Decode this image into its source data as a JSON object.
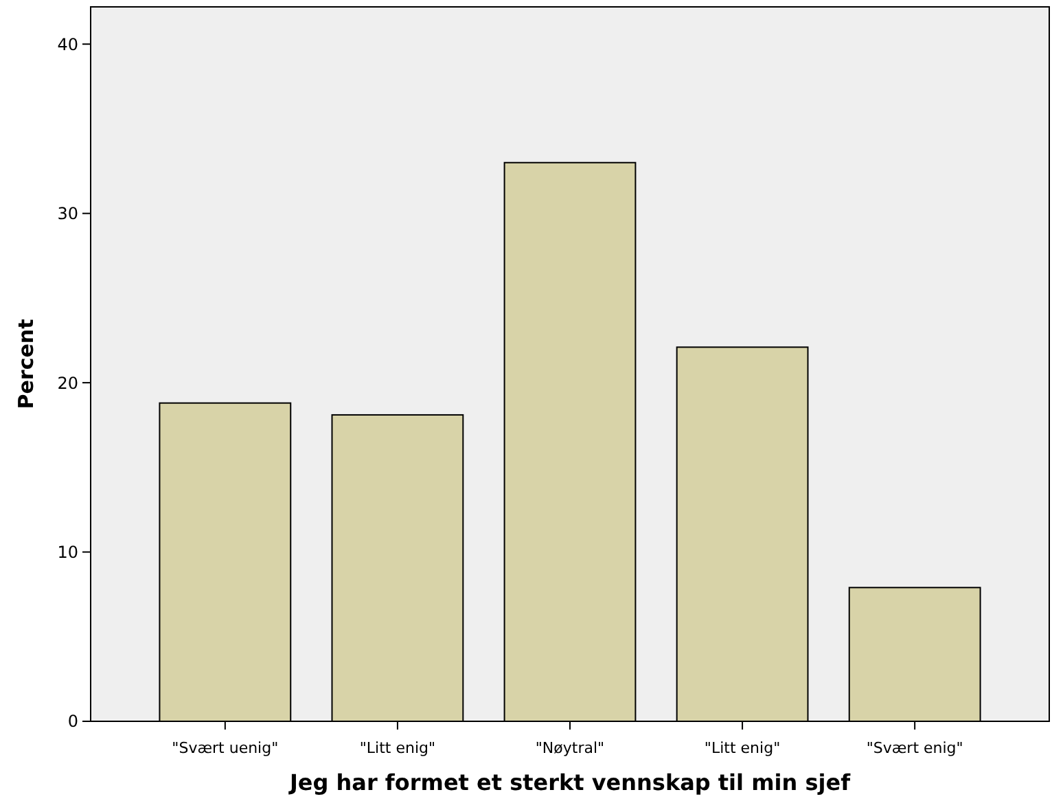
{
  "chart_data": {
    "type": "bar",
    "xlabel": "Jeg har formet et sterkt vennskap til min sjef",
    "ylabel": "Percent",
    "categories": [
      "\"Svært uenig\"",
      "\"Litt enig\"",
      "\"Nøytral\"",
      "\"Litt enig\"",
      "\"Svært enig\""
    ],
    "values": [
      18.8,
      18.1,
      33.0,
      22.1,
      7.9
    ],
    "color": "#d8d3a8",
    "ylim": [
      0,
      42.2
    ],
    "yticks": [
      0,
      10,
      20,
      30,
      40
    ],
    "grid": false
  }
}
